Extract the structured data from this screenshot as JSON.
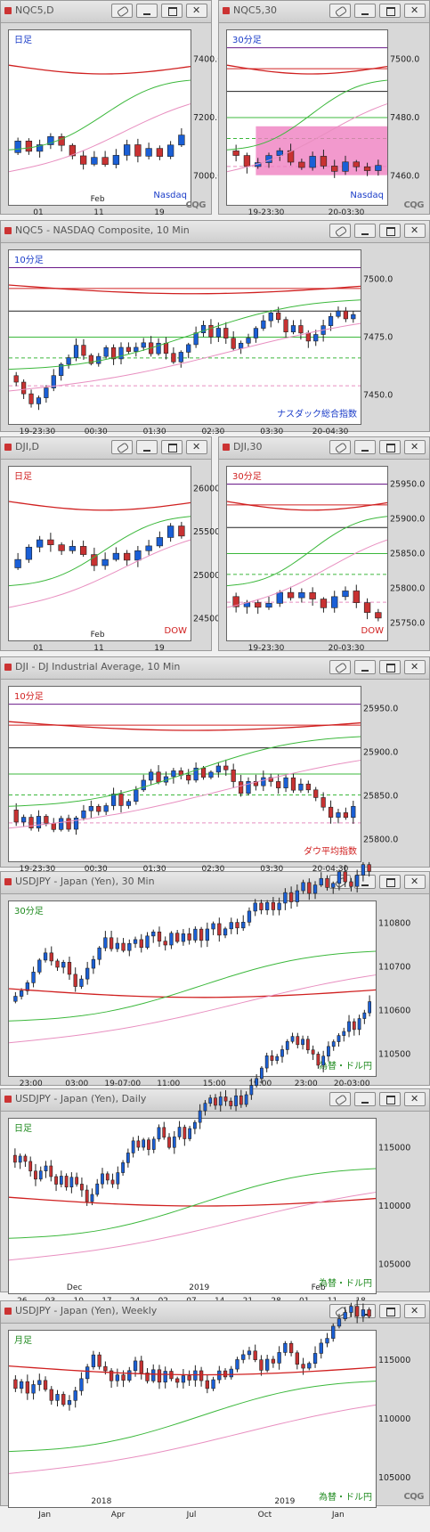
{
  "colors": {
    "up": "#1a5fd6",
    "down": "#c83232",
    "ma_red": "#d02020",
    "ma_green": "#3cb83c",
    "ma_pink": "#e88fc0",
    "ma_black": "#202020",
    "ma_purple": "#6a1a8a",
    "text_blue": "#1a3cc8",
    "text_red": "#d02020",
    "text_green": "#1e8a1e"
  },
  "windows": [
    {
      "id": "nqc5-daily",
      "title": "NQC5,D",
      "period_label": "日足",
      "period_color": "#1a3cc8",
      "corner_label": "Nasdaq",
      "corner_color": "#1a3cc8",
      "y_ticks": [
        "7400.0",
        "7200.0",
        "7000.0"
      ],
      "x_ticks": [
        "01",
        "11",
        "19"
      ],
      "x_sub": "Feb",
      "logo": "CQG"
    },
    {
      "id": "nqc5-30",
      "title": "NQC5,30",
      "period_label": "30分足",
      "period_color": "#1a3cc8",
      "corner_label": "Nasdaq",
      "corner_color": "#1a3cc8",
      "y_ticks": [
        "7500.0",
        "7480.0",
        "7460.0"
      ],
      "x_ticks": [
        "19-23:30",
        "20-03:30"
      ],
      "logo": "CQG"
    },
    {
      "id": "nqc5-10",
      "title": "NQC5 - NASDAQ Composite, 10 Min",
      "period_label": "10分足",
      "period_color": "#1a3cc8",
      "corner_label": "ナスダック総合指数",
      "corner_color": "#1a3cc8",
      "y_ticks": [
        "7500.0",
        "7475.0",
        "7450.0"
      ],
      "x_ticks": [
        "19-23:30",
        "00:30",
        "01:30",
        "02:30",
        "03:30",
        "20-04:30"
      ]
    },
    {
      "id": "dji-daily",
      "title": "DJI,D",
      "period_label": "日足",
      "period_color": "#d02020",
      "corner_label": "DOW",
      "corner_color": "#d02020",
      "y_ticks": [
        "26000.0",
        "25500.0",
        "25000.0",
        "24500.0"
      ],
      "x_ticks": [
        "01",
        "11",
        "19"
      ],
      "x_sub": "Feb"
    },
    {
      "id": "dji-30",
      "title": "DJI,30",
      "period_label": "30分足",
      "period_color": "#d02020",
      "corner_label": "DOW",
      "corner_color": "#d02020",
      "y_ticks": [
        "25950.0",
        "25900.0",
        "25850.0",
        "25800.0",
        "25750.0"
      ],
      "x_ticks": [
        "19-23:30",
        "20-03:30"
      ]
    },
    {
      "id": "dji-10",
      "title": "DJI - DJ Industrial Average, 10 Min",
      "period_label": "10分足",
      "period_color": "#d02020",
      "corner_label": "ダウ平均指数",
      "corner_color": "#d02020",
      "y_ticks": [
        "25950.0",
        "25900.0",
        "25850.0",
        "25800.0"
      ],
      "x_ticks": [
        "19-23:30",
        "00:30",
        "01:30",
        "02:30",
        "03:30",
        "20-04:30"
      ]
    },
    {
      "id": "usdjpy-30",
      "title": "USDJPY - Japan (Yen), 30 Min",
      "period_label": "30分足",
      "period_color": "#1e8a1e",
      "corner_label": "為替・ドル円",
      "corner_color": "#1e8a1e",
      "y_ticks": [
        "110800",
        "110700",
        "110600",
        "110500"
      ],
      "x_ticks": [
        "23:00",
        "03:00",
        "19-07:00",
        "11:00",
        "15:00",
        "19:00",
        "23:00",
        "20-03:00"
      ]
    },
    {
      "id": "usdjpy-daily",
      "title": "USDJPY - Japan (Yen), Daily",
      "period_label": "日足",
      "period_color": "#1e8a1e",
      "corner_label": "為替・ドル円",
      "corner_color": "#1e8a1e",
      "y_ticks": [
        "115000",
        "110000",
        "105000"
      ],
      "x_ticks": [
        "26",
        "03",
        "10",
        "17",
        "24",
        "02",
        "07",
        "14",
        "21",
        "28",
        "01",
        "11",
        "18"
      ],
      "x_sub": [
        "Dec",
        "2019",
        "Feb"
      ]
    },
    {
      "id": "usdjpy-weekly",
      "title": "USDJPY - Japan (Yen), Weekly",
      "period_label": "月足",
      "period_color": "#1e8a1e",
      "corner_label": "為替・ドル円",
      "corner_color": "#1e8a1e",
      "y_ticks": [
        "115000",
        "110000",
        "105000"
      ],
      "x_ticks": [
        "Jan",
        "Apr",
        "Jul",
        "Oct",
        "Jan"
      ],
      "x_sub": [
        "2018",
        "2019"
      ],
      "logo": "CQG"
    }
  ]
}
